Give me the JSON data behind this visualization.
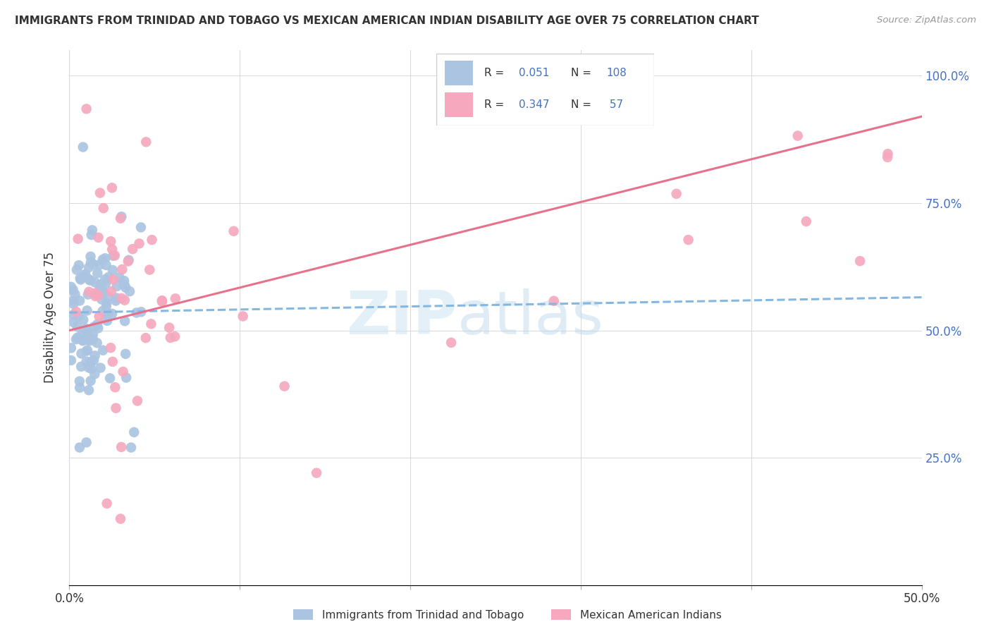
{
  "title": "IMMIGRANTS FROM TRINIDAD AND TOBAGO VS MEXICAN AMERICAN INDIAN DISABILITY AGE OVER 75 CORRELATION CHART",
  "source": "Source: ZipAtlas.com",
  "ylabel": "Disability Age Over 75",
  "xlim": [
    0.0,
    0.5
  ],
  "ylim": [
    0.0,
    1.05
  ],
  "color_blue": "#aac4e2",
  "color_pink": "#f5a8be",
  "color_line_blue": "#85b8e0",
  "color_line_pink": "#e8708a",
  "legend_label1": "Immigrants from Trinidad and Tobago",
  "legend_label2": "Mexican American Indians",
  "blue_r": 0.051,
  "blue_n": 108,
  "pink_r": 0.347,
  "pink_n": 57,
  "blue_line_x0": 0.0,
  "blue_line_x1": 0.5,
  "blue_line_y0": 0.535,
  "blue_line_y1": 0.565,
  "pink_line_x0": 0.0,
  "pink_line_x1": 0.5,
  "pink_line_y0": 0.5,
  "pink_line_y1": 0.92,
  "watermark_zip": "ZIP",
  "watermark_atlas": "atlas"
}
